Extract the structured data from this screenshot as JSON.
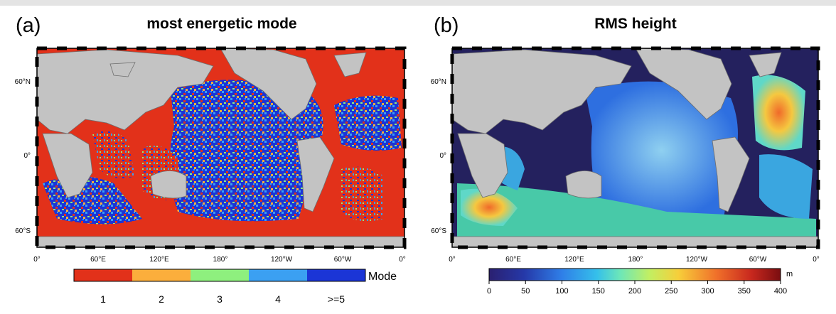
{
  "panel_a": {
    "letter": "(a)",
    "title": "most energetic mode",
    "colorbar_label": "Mode",
    "colorbar_ticks": [
      "1",
      "2",
      "3",
      "4",
      ">=5"
    ],
    "colorbar_colors": [
      "#e2311a",
      "#fbae3c",
      "#8ef07e",
      "#3ba0f2",
      "#1b35d6"
    ]
  },
  "panel_b": {
    "letter": "(b)",
    "title": "RMS height",
    "colorbar_unit": "m",
    "colorbar_ticks": [
      "0",
      "50",
      "100",
      "150",
      "200",
      "250",
      "300",
      "350",
      "400"
    ],
    "colorbar_range": [
      0,
      400
    ]
  },
  "map_axes": {
    "lon_labels": [
      "0°",
      "60°E",
      "120°E",
      "180°",
      "120°W",
      "60°W",
      "0°"
    ],
    "lat_labels": [
      "60°N",
      "0°",
      "60°S"
    ]
  },
  "colors": {
    "land": "#c3c3c3",
    "coast": "#6e6e6e",
    "shelf": "#8c8c8c",
    "deep_low": "#24215e"
  }
}
